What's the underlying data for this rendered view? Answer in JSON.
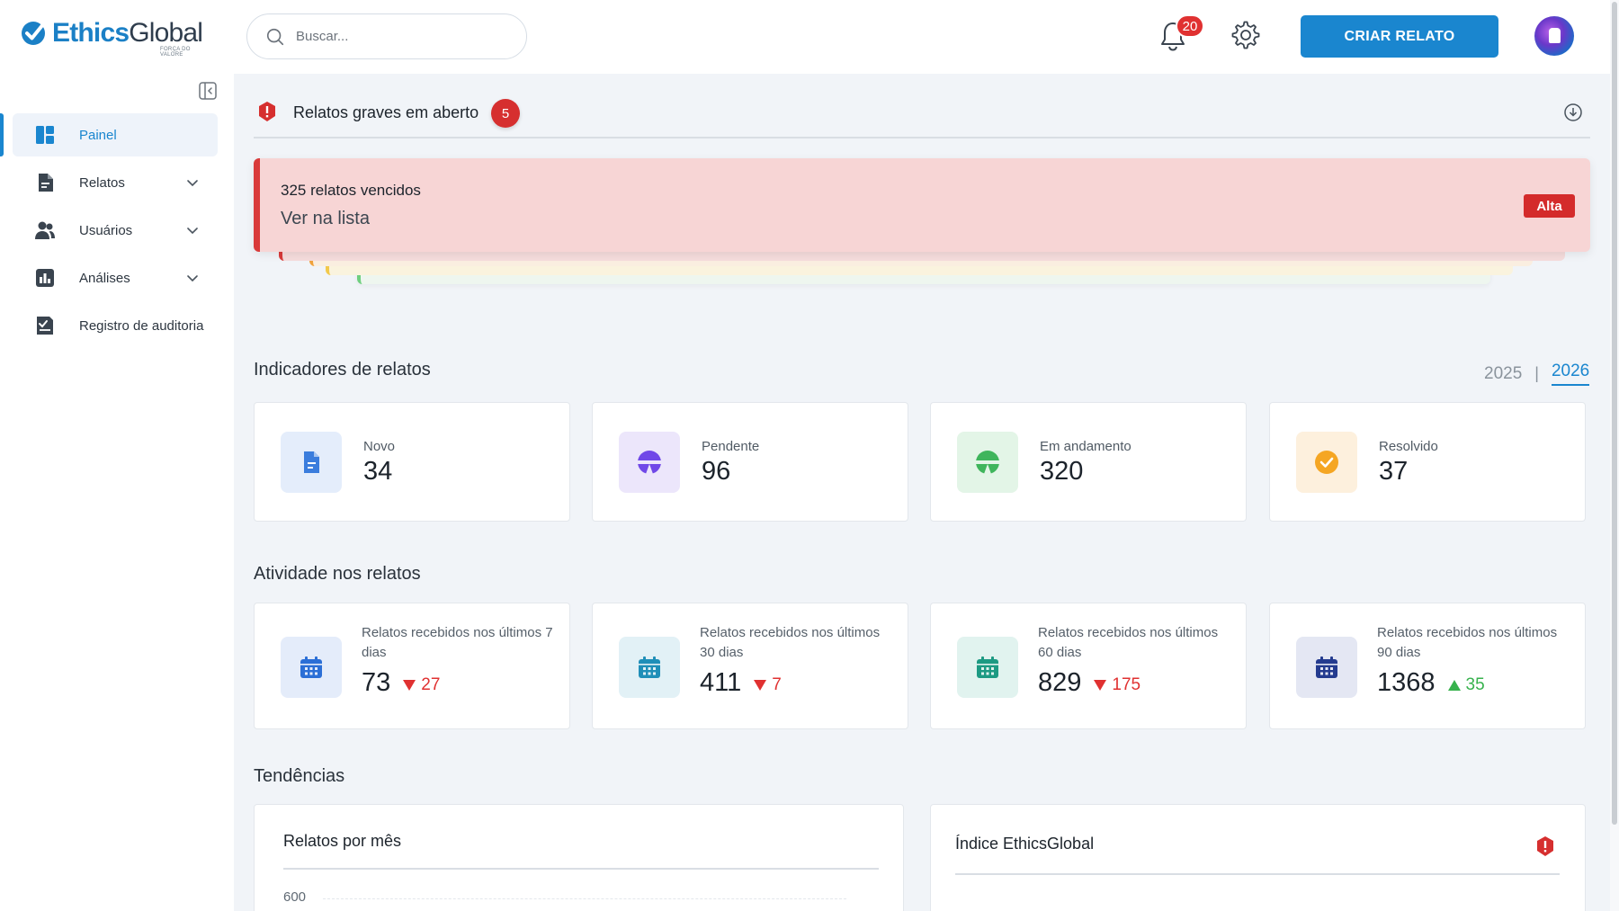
{
  "brand": {
    "name_part1": "Ethics",
    "name_part2": "Global",
    "tagline": "FORÇA DO VALORE"
  },
  "header": {
    "search_placeholder": "Buscar...",
    "notifications_count": "20",
    "cta_label": "CRIAR RELATO"
  },
  "sidebar": {
    "items": [
      {
        "label": "Painel",
        "icon": "dashboard-icon",
        "active": true,
        "has_submenu": false
      },
      {
        "label": "Relatos",
        "icon": "document-icon",
        "active": false,
        "has_submenu": true
      },
      {
        "label": "Usuários",
        "icon": "users-icon",
        "active": false,
        "has_submenu": true
      },
      {
        "label": "Análises",
        "icon": "chart-icon",
        "active": false,
        "has_submenu": true
      },
      {
        "label": "Registro de auditoria",
        "icon": "audit-icon",
        "active": false,
        "has_submenu": false
      }
    ]
  },
  "alerts": {
    "title": "Relatos graves em aberto",
    "count": "5",
    "card": {
      "title": "325 relatos vencidos",
      "link": "Ver na lista",
      "priority": "Alta"
    },
    "stack_colors": [
      "#d93a3a",
      "#f0a23b",
      "#f2c94c",
      "#6fcf7f"
    ]
  },
  "indicators": {
    "title": "Indicadores de relatos",
    "years": [
      "2025",
      "2026"
    ],
    "selected_year": "2026",
    "cards": [
      {
        "label": "Novo",
        "value": "34",
        "icon": "new-document-icon",
        "color": "#3b7ddd",
        "bg": "#e4edfb"
      },
      {
        "label": "Pendente",
        "value": "96",
        "icon": "pending-icon",
        "color": "#7048e8",
        "bg": "#ece6fb"
      },
      {
        "label": "Em andamento",
        "value": "320",
        "icon": "in-progress-icon",
        "color": "#3fb55c",
        "bg": "#e3f5e7"
      },
      {
        "label": "Resolvido",
        "value": "37",
        "icon": "check-circle-icon",
        "color": "#f5a623",
        "bg": "#fdf0dd"
      }
    ]
  },
  "activity": {
    "title": "Atividade nos relatos",
    "cards": [
      {
        "label": "Relatos recebidos nos últimos 7 dias",
        "value": "73",
        "delta": "27",
        "trend": "down",
        "color": "#2b6fd6",
        "bg": "#e4ecfa"
      },
      {
        "label": "Relatos recebidos nos últimos 30 dias",
        "value": "411",
        "delta": "7",
        "trend": "down",
        "color": "#1f8fb8",
        "bg": "#e2f1f6"
      },
      {
        "label": "Relatos recebidos nos últimos 60 dias",
        "value": "829",
        "delta": "175",
        "trend": "down",
        "color": "#1d9a83",
        "bg": "#e1f3ef"
      },
      {
        "label": "Relatos recebidos nos últimos 90 dias",
        "value": "1368",
        "delta": "35",
        "trend": "up",
        "color": "#243b8f",
        "bg": "#e4e7f3"
      }
    ]
  },
  "trends": {
    "title": "Tendências",
    "monthly": {
      "title": "Relatos por mês",
      "first_tick": "600"
    },
    "index": {
      "title": "Índice EthicsGlobal"
    }
  }
}
